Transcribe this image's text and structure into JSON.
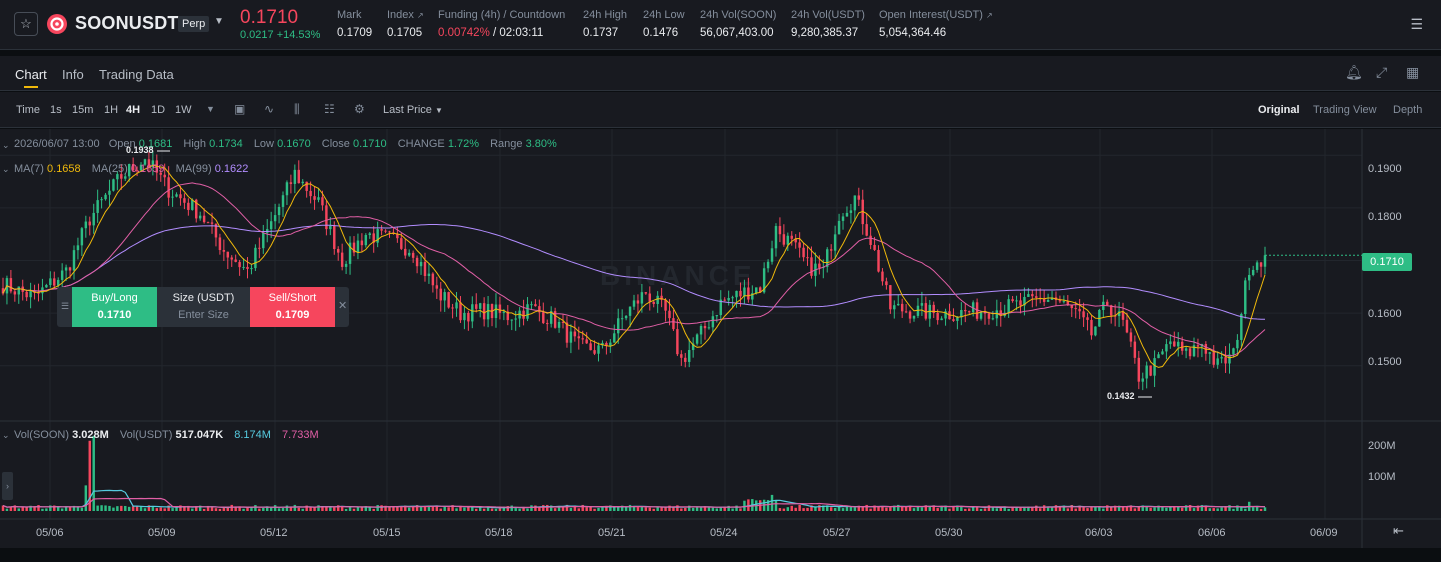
{
  "header": {
    "symbol": "SOONUSDT",
    "contract_type": "Perp",
    "last_price": "0.1710",
    "change": "0.0217 +14.53%",
    "stats": [
      {
        "label": "Mark",
        "value": "0.1709"
      },
      {
        "label": "Index",
        "value": "0.1705"
      },
      {
        "label": "Funding (4h) / Countdown",
        "value_rate": "0.00742%",
        "value_countdown": " / 02:03:11"
      },
      {
        "label": "24h High",
        "value": "0.1737"
      },
      {
        "label": "24h Low",
        "value": "0.1476"
      },
      {
        "label": "24h Vol(SOON)",
        "value": "56,067,403.00"
      },
      {
        "label": "24h Vol(USDT)",
        "value": "9,280,385.37"
      },
      {
        "label": "Open Interest(USDT)",
        "value": "5,054,364.46"
      }
    ]
  },
  "tabs": [
    {
      "label": "Chart",
      "active": true
    },
    {
      "label": "Info"
    },
    {
      "label": "Trading Data"
    }
  ],
  "toolbar": {
    "time_label": "Time",
    "intervals": [
      "1s",
      "15m",
      "1H",
      "4H",
      "1D",
      "1W"
    ],
    "active_interval": "4H",
    "price_type": "Last Price",
    "views": [
      "Original",
      "Trading View",
      "Depth"
    ],
    "active_view": "Original"
  },
  "ohlc": {
    "datetime": "2026/06/07 13:00",
    "open_label": "Open",
    "open": "0.1681",
    "high_label": "High",
    "high": "0.1734",
    "low_label": "Low",
    "low": "0.1670",
    "close_label": "Close",
    "close": "0.1710",
    "change_label": "CHANGE",
    "change": "1.72%",
    "range_label": "Range",
    "range": "3.80%"
  },
  "ma": {
    "ma7_label": "MA(7)",
    "ma7": "0.1658",
    "ma25_label": "MA(25)",
    "ma25": "0.1659",
    "ma99_label": "MA(99)",
    "ma99": "0.1622"
  },
  "volume": {
    "vol_base_label": "Vol(SOON)",
    "vol_base": "3.028M",
    "vol_quote_label": "Vol(USDT)",
    "vol_quote": "517.047K",
    "vol_ma1": "8.174M",
    "vol_ma2": "7.733M"
  },
  "order_panel": {
    "buy_label": "Buy/Long",
    "buy_price": "0.1710",
    "size_label": "Size (USDT)",
    "size_placeholder": "Enter Size",
    "sell_label": "Sell/Short",
    "sell_price": "0.1709"
  },
  "annotations": {
    "high": "0.1938",
    "low": "0.1432"
  },
  "watermark": "BINANCE",
  "colors": {
    "up": "#2ebd85",
    "down": "#f6465d",
    "ma7": "#f0b90b",
    "ma25": "#e15fa6",
    "ma99": "#b28dff",
    "vol_ma": "#56cbe0"
  },
  "chart_data": {
    "type": "candlestick",
    "interval": "4H",
    "y_ticks": [
      "0.1900",
      "0.1800",
      "0.1700",
      "0.1600",
      "0.1500"
    ],
    "ylim": [
      0.1395,
      0.195
    ],
    "current_price_label": "0.1710",
    "x_ticks": [
      "05/06",
      "05/09",
      "05/12",
      "05/15",
      "05/18",
      "05/21",
      "05/24",
      "05/27",
      "05/30",
      "06/03",
      "06/06",
      "06/09"
    ],
    "volume_ticks": [
      "200M",
      "100M"
    ],
    "keypoints": [
      [
        0,
        0.1655
      ],
      [
        8,
        0.163
      ],
      [
        16,
        0.168
      ],
      [
        22,
        0.178
      ],
      [
        30,
        0.186
      ],
      [
        36,
        0.1895
      ],
      [
        42,
        0.1835
      ],
      [
        50,
        0.179
      ],
      [
        56,
        0.172
      ],
      [
        62,
        0.168
      ],
      [
        68,
        0.177
      ],
      [
        74,
        0.1865
      ],
      [
        80,
        0.181
      ],
      [
        86,
        0.17
      ],
      [
        92,
        0.175
      ],
      [
        98,
        0.174
      ],
      [
        104,
        0.172
      ],
      [
        110,
        0.164
      ],
      [
        116,
        0.16
      ],
      [
        122,
        0.1605
      ],
      [
        128,
        0.1595
      ],
      [
        134,
        0.161
      ],
      [
        140,
        0.1585
      ],
      [
        146,
        0.1535
      ],
      [
        152,
        0.153
      ],
      [
        158,
        0.16
      ],
      [
        163,
        0.164
      ],
      [
        168,
        0.16
      ],
      [
        172,
        0.151
      ],
      [
        177,
        0.156
      ],
      [
        182,
        0.162
      ],
      [
        188,
        0.164
      ],
      [
        192,
        0.165
      ],
      [
        196,
        0.176
      ],
      [
        200,
        0.173
      ],
      [
        204,
        0.169
      ],
      [
        208,
        0.168
      ],
      [
        212,
        0.179
      ],
      [
        216,
        0.182
      ],
      [
        220,
        0.174
      ],
      [
        225,
        0.161
      ],
      [
        230,
        0.1605
      ],
      [
        236,
        0.16
      ],
      [
        242,
        0.16
      ],
      [
        248,
        0.1605
      ],
      [
        254,
        0.161
      ],
      [
        260,
        0.162
      ],
      [
        266,
        0.163
      ],
      [
        272,
        0.16
      ],
      [
        276,
        0.156
      ],
      [
        280,
        0.162
      ],
      [
        284,
        0.158
      ],
      [
        288,
        0.148
      ],
      [
        292,
        0.15
      ],
      [
        296,
        0.1545
      ],
      [
        300,
        0.152
      ],
      [
        304,
        0.1545
      ],
      [
        308,
        0.15
      ],
      [
        312,
        0.152
      ],
      [
        316,
        0.169
      ],
      [
        320,
        0.171
      ]
    ]
  }
}
